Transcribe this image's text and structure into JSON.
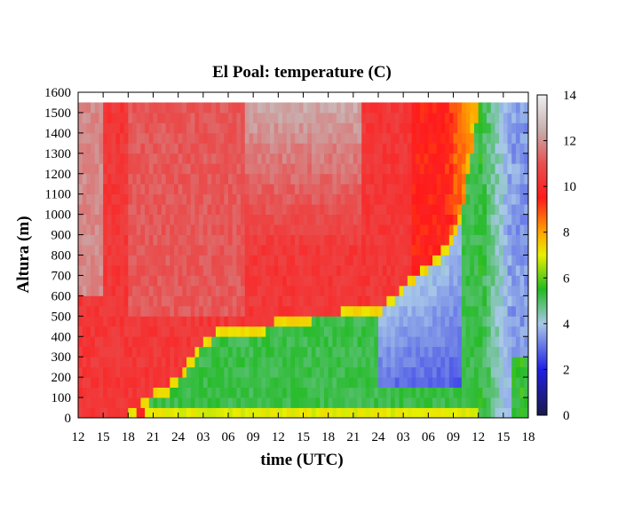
{
  "chart_data": {
    "type": "heatmap",
    "title": "El Poal: temperature (C)",
    "xlabel": "time (UTC)",
    "ylabel": "Altura (m)",
    "x_ticks": [
      "12",
      "15",
      "18",
      "21",
      "24",
      "03",
      "06",
      "09",
      "12",
      "15",
      "18",
      "21",
      "24",
      "03",
      "06",
      "09",
      "12",
      "15",
      "18"
    ],
    "y_ticks": [
      0,
      100,
      200,
      300,
      400,
      500,
      600,
      700,
      800,
      900,
      1000,
      1100,
      1200,
      1300,
      1400,
      1500,
      1600
    ],
    "ylim": [
      0,
      1600
    ],
    "x_range_hours": [
      0,
      54
    ],
    "data_top_m": 1550,
    "colorbar": {
      "min": 0,
      "max": 14,
      "ticks": [
        0,
        2,
        4,
        6,
        8,
        10,
        12,
        14
      ],
      "stops": [
        {
          "v": 0,
          "color": "#1a1a4a"
        },
        {
          "v": 2,
          "color": "#1f1fe6"
        },
        {
          "v": 4,
          "color": "#a8c8e8"
        },
        {
          "v": 5.5,
          "color": "#22bb22"
        },
        {
          "v": 7,
          "color": "#e8f000"
        },
        {
          "v": 8,
          "color": "#ffa500"
        },
        {
          "v": 9.5,
          "color": "#ff1a1a"
        },
        {
          "v": 11,
          "color": "#e85050"
        },
        {
          "v": 12.5,
          "color": "#c8b0b0"
        },
        {
          "v": 14,
          "color": "#f0f0f0"
        }
      ]
    },
    "inversion_height_m": [
      [
        0,
        0
      ],
      [
        6,
        0
      ],
      [
        8,
        50
      ],
      [
        9,
        90
      ],
      [
        10,
        100
      ],
      [
        11,
        130
      ],
      [
        12,
        170
      ],
      [
        13,
        230
      ],
      [
        14,
        290
      ],
      [
        15,
        340
      ],
      [
        16,
        380
      ],
      [
        17,
        400
      ],
      [
        19,
        410
      ],
      [
        22,
        420
      ],
      [
        24,
        440
      ],
      [
        26,
        470
      ],
      [
        30,
        480
      ],
      [
        33,
        490
      ],
      [
        36,
        510
      ],
      [
        38,
        570
      ],
      [
        40,
        660
      ],
      [
        42,
        720
      ],
      [
        44,
        800
      ],
      [
        46,
        1000
      ],
      [
        48,
        1500
      ],
      [
        50,
        1550
      ],
      [
        54,
        1550
      ]
    ]
  }
}
